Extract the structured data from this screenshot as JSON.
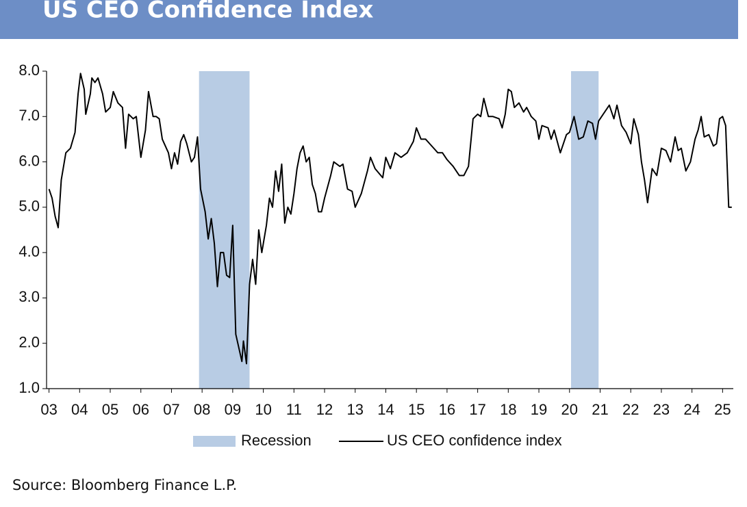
{
  "chart_data": {
    "type": "line",
    "title": "US CEO Confidence Index",
    "source": "Source: Bloomberg Finance L.P.",
    "xlim": [
      2002.92,
      2025.35
    ],
    "ylim": [
      1,
      8
    ],
    "yticks": [
      {
        "value": 1,
        "label": "1.0"
      },
      {
        "value": 2,
        "label": "2.0"
      },
      {
        "value": 3,
        "label": "3.0"
      },
      {
        "value": 4,
        "label": "4.0"
      },
      {
        "value": 5,
        "label": "5.0"
      },
      {
        "value": 6,
        "label": "6.0"
      },
      {
        "value": 7,
        "label": "7.0"
      },
      {
        "value": 8,
        "label": "8.0"
      }
    ],
    "xticks": [
      {
        "value": 2003,
        "label": "03"
      },
      {
        "value": 2004,
        "label": "04"
      },
      {
        "value": 2005,
        "label": "05"
      },
      {
        "value": 2006,
        "label": "06"
      },
      {
        "value": 2007,
        "label": "07"
      },
      {
        "value": 2008,
        "label": "08"
      },
      {
        "value": 2009,
        "label": "09"
      },
      {
        "value": 2010,
        "label": "10"
      },
      {
        "value": 2011,
        "label": "11"
      },
      {
        "value": 2012,
        "label": "12"
      },
      {
        "value": 2013,
        "label": "13"
      },
      {
        "value": 2014,
        "label": "14"
      },
      {
        "value": 2015,
        "label": "15"
      },
      {
        "value": 2016,
        "label": "16"
      },
      {
        "value": 2017,
        "label": "17"
      },
      {
        "value": 2018,
        "label": "18"
      },
      {
        "value": 2019,
        "label": "19"
      },
      {
        "value": 2020,
        "label": "20"
      },
      {
        "value": 2021,
        "label": "21"
      },
      {
        "value": 2022,
        "label": "22"
      },
      {
        "value": 2023,
        "label": "23"
      },
      {
        "value": 2024,
        "label": "24"
      },
      {
        "value": 2025,
        "label": "25"
      }
    ],
    "recession": {
      "name": "Recession",
      "color": "#b8cce4",
      "periods": [
        {
          "start": 2007.9,
          "end": 2009.55
        },
        {
          "start": 2020.05,
          "end": 2020.95
        }
      ]
    },
    "series": [
      {
        "name": "US CEO confidence index",
        "color": "#000000",
        "x": [
          2003.0,
          2003.1,
          2003.2,
          2003.3,
          2003.4,
          2003.55,
          2003.7,
          2003.85,
          2003.95,
          2004.03,
          2004.15,
          2004.2,
          2004.35,
          2004.4,
          2004.5,
          2004.6,
          2004.75,
          2004.85,
          2005.0,
          2005.1,
          2005.25,
          2005.4,
          2005.5,
          2005.6,
          2005.75,
          2005.85,
          2006.0,
          2006.15,
          2006.25,
          2006.4,
          2006.5,
          2006.6,
          2006.7,
          2006.9,
          2007.0,
          2007.1,
          2007.2,
          2007.3,
          2007.4,
          2007.5,
          2007.65,
          2007.75,
          2007.85,
          2007.95,
          2008.1,
          2008.2,
          2008.3,
          2008.4,
          2008.5,
          2008.6,
          2008.7,
          2008.8,
          2008.9,
          2009.0,
          2009.1,
          2009.2,
          2009.3,
          2009.35,
          2009.45,
          2009.55,
          2009.65,
          2009.75,
          2009.85,
          2009.95,
          2010.1,
          2010.2,
          2010.3,
          2010.4,
          2010.5,
          2010.6,
          2010.7,
          2010.8,
          2010.9,
          2011.0,
          2011.1,
          2011.2,
          2011.3,
          2011.4,
          2011.5,
          2011.6,
          2011.7,
          2011.8,
          2011.9,
          2012.0,
          2012.2,
          2012.3,
          2012.5,
          2012.6,
          2012.75,
          2012.9,
          2013.0,
          2013.2,
          2013.4,
          2013.5,
          2013.65,
          2013.9,
          2014.0,
          2014.15,
          2014.3,
          2014.5,
          2014.7,
          2014.9,
          2015.0,
          2015.15,
          2015.3,
          2015.5,
          2015.7,
          2015.85,
          2016.0,
          2016.2,
          2016.4,
          2016.55,
          2016.7,
          2016.85,
          2017.0,
          2017.1,
          2017.2,
          2017.35,
          2017.5,
          2017.7,
          2017.8,
          2017.9,
          2018.0,
          2018.1,
          2018.2,
          2018.35,
          2018.5,
          2018.6,
          2018.75,
          2018.9,
          2019.0,
          2019.1,
          2019.3,
          2019.4,
          2019.5,
          2019.7,
          2019.9,
          2020.0,
          2020.15,
          2020.3,
          2020.45,
          2020.6,
          2020.75,
          2020.85,
          2020.95,
          2021.1,
          2021.3,
          2021.45,
          2021.55,
          2021.7,
          2021.85,
          2022.0,
          2022.1,
          2022.25,
          2022.35,
          2022.45,
          2022.55,
          2022.7,
          2022.85,
          2023.0,
          2023.15,
          2023.3,
          2023.45,
          2023.55,
          2023.65,
          2023.8,
          2023.95,
          2024.1,
          2024.2,
          2024.3,
          2024.4,
          2024.55,
          2024.7,
          2024.8,
          2024.9,
          2025.0,
          2025.1,
          2025.2,
          2025.3
        ],
        "values": [
          5.4,
          5.2,
          4.8,
          4.55,
          5.6,
          6.2,
          6.3,
          6.65,
          7.5,
          7.95,
          7.6,
          7.05,
          7.5,
          7.85,
          7.75,
          7.85,
          7.5,
          7.1,
          7.2,
          7.55,
          7.3,
          7.2,
          6.3,
          7.05,
          6.95,
          7.0,
          6.1,
          6.7,
          7.55,
          7.0,
          7.0,
          6.95,
          6.5,
          6.2,
          5.85,
          6.2,
          5.95,
          6.45,
          6.6,
          6.4,
          6.0,
          6.1,
          6.55,
          5.4,
          4.9,
          4.3,
          4.75,
          4.2,
          3.25,
          4.0,
          4.0,
          3.5,
          3.45,
          4.6,
          2.2,
          1.9,
          1.6,
          2.05,
          1.55,
          3.3,
          3.85,
          3.3,
          4.5,
          4.0,
          4.6,
          5.2,
          5.0,
          5.8,
          5.35,
          5.95,
          4.65,
          5.0,
          4.85,
          5.3,
          5.85,
          6.2,
          6.35,
          6.0,
          6.1,
          5.5,
          5.3,
          4.9,
          4.9,
          5.2,
          5.7,
          6.0,
          5.9,
          5.95,
          5.4,
          5.35,
          5.0,
          5.3,
          5.8,
          6.1,
          5.85,
          5.65,
          6.1,
          5.85,
          6.2,
          6.1,
          6.2,
          6.45,
          6.75,
          6.5,
          6.5,
          6.35,
          6.2,
          6.2,
          6.05,
          5.9,
          5.7,
          5.7,
          5.9,
          6.95,
          7.05,
          7.0,
          7.4,
          7.0,
          7.0,
          6.95,
          6.75,
          7.05,
          7.6,
          7.55,
          7.2,
          7.3,
          7.1,
          7.2,
          7.0,
          6.9,
          6.5,
          6.8,
          6.75,
          6.5,
          6.7,
          6.2,
          6.6,
          6.65,
          7.0,
          6.5,
          6.55,
          6.9,
          6.85,
          6.5,
          6.9,
          7.05,
          7.25,
          6.95,
          7.25,
          6.8,
          6.65,
          6.4,
          6.95,
          6.6,
          6.0,
          5.6,
          5.1,
          5.85,
          5.7,
          6.3,
          6.25,
          6.0,
          6.55,
          6.25,
          6.3,
          5.8,
          6.0,
          6.5,
          6.7,
          7.0,
          6.55,
          6.6,
          6.35,
          6.4,
          6.95,
          7.0,
          6.8,
          5.0,
          5.0
        ]
      }
    ]
  }
}
